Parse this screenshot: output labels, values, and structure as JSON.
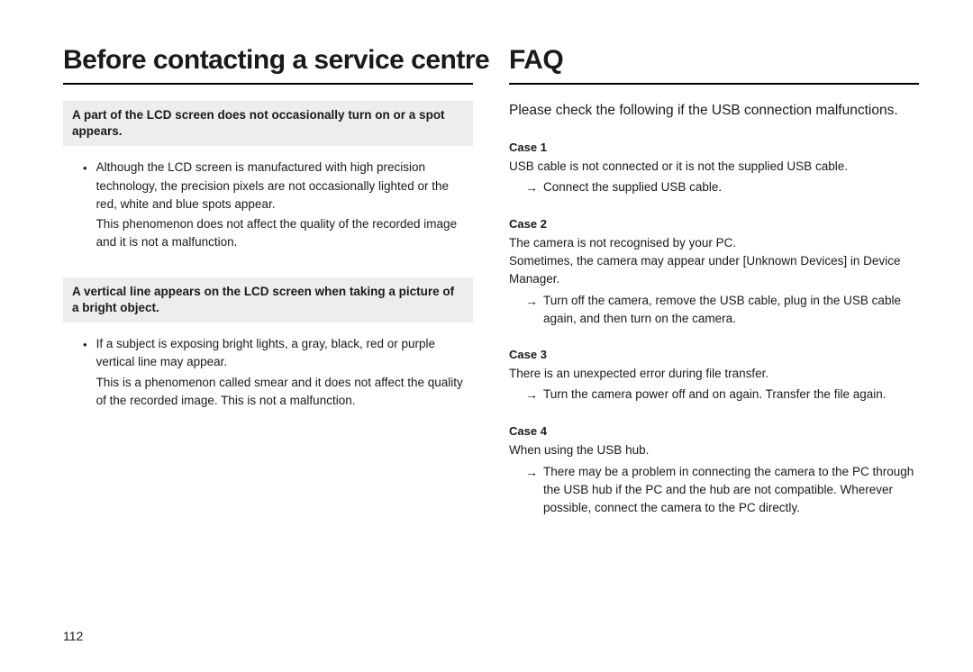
{
  "page_number": "112",
  "left": {
    "heading": "Before contacting a service centre",
    "sections": [
      {
        "callout": "A part of the LCD screen does not occasionally turn on or a spot appears.",
        "bullet": "Although the LCD screen is manufactured with high precision technology, the precision pixels are not occasionally lighted or the red, white and blue spots appear.",
        "follow": "This phenomenon does not affect the quality of the recorded image and it is not a malfunction."
      },
      {
        "callout": "A vertical line appears on the LCD screen when taking a picture of a bright object.",
        "bullet": "If a subject is exposing bright lights, a gray, black, red or purple vertical line may appear.",
        "follow": "This is a phenomenon called smear and it does not affect the quality of the recorded image. This is not a malfunction."
      }
    ]
  },
  "right": {
    "heading": "FAQ",
    "intro": "Please check the following if the USB connection malfunctions.",
    "cases": [
      {
        "label": "Case 1",
        "body": "USB cable is not connected or it is not the supplied USB cable.",
        "arrow": "Connect the supplied USB cable."
      },
      {
        "label": "Case 2",
        "body": "The camera is not recognised by your PC.\nSometimes, the camera may appear under [Unknown Devices] in Device Manager.",
        "arrow": "Turn off the camera, remove the USB cable, plug in the USB cable again, and then turn on the camera."
      },
      {
        "label": "Case 3",
        "body": "There is an unexpected error during file transfer.",
        "arrow": "Turn the camera power off and on again. Transfer the file again."
      },
      {
        "label": "Case 4",
        "body": "When using the USB hub.",
        "arrow": "There may be a problem in connecting the camera to the PC through the USB hub if the PC and the hub are not compatible. Wherever possible, connect the camera to the PC directly."
      }
    ]
  },
  "glyphs": {
    "bullet": "•",
    "arrow": "→"
  },
  "colors": {
    "callout_bg": "#ededed",
    "text": "#1a1a1a",
    "page_bg": "#ffffff",
    "rule": "#000000"
  }
}
